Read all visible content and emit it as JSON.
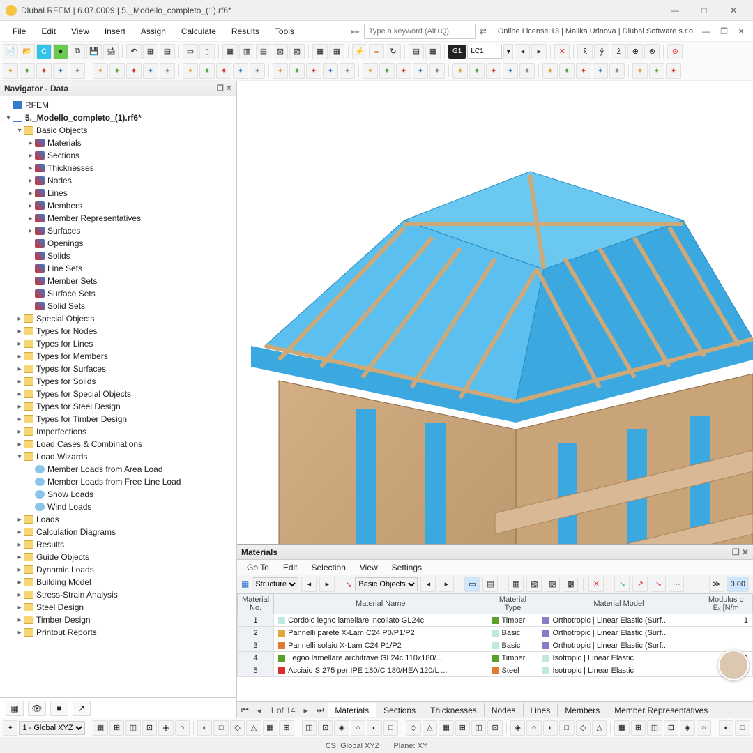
{
  "window": {
    "title": "Dlubal RFEM | 6.07.0009 | 5._Modello_completo_(1).rf6*",
    "license": "Online License 13 | Malika Urinova | Dlubal Software s.r.o."
  },
  "menu": [
    "File",
    "Edit",
    "View",
    "Insert",
    "Assign",
    "Calculate",
    "Results",
    "Tools"
  ],
  "keyword_placeholder": "Type a keyword (Alt+Q)",
  "loadcase": {
    "g1": "G1",
    "lc": "LC1"
  },
  "navigator": {
    "title": "Navigator - Data",
    "root": "RFEM",
    "file": "5._Modello_completo_(1).rf6*",
    "basic_objects_label": "Basic Objects",
    "basic_objects": [
      "Materials",
      "Sections",
      "Thicknesses",
      "Nodes",
      "Lines",
      "Members",
      "Member Representatives",
      "Surfaces",
      "Openings",
      "Solids",
      "Line Sets",
      "Member Sets",
      "Surface Sets",
      "Solid Sets"
    ],
    "folders1": [
      "Special Objects",
      "Types for Nodes",
      "Types for Lines",
      "Types for Members",
      "Types for Surfaces",
      "Types for Solids",
      "Types for Special Objects",
      "Types for Steel Design",
      "Types for Timber Design",
      "Imperfections",
      "Load Cases & Combinations"
    ],
    "load_wizards_label": "Load Wizards",
    "load_wizards": [
      "Member Loads from Area Load",
      "Member Loads from Free Line Load",
      "Snow Loads",
      "Wind Loads"
    ],
    "folders2": [
      "Loads",
      "Calculation Diagrams",
      "Results",
      "Guide Objects",
      "Dynamic Loads",
      "Building Model",
      "Stress-Strain Analysis",
      "Steel Design",
      "Timber Design",
      "Printout Reports"
    ]
  },
  "materials_panel": {
    "title": "Materials",
    "menu": [
      "Go To",
      "Edit",
      "Selection",
      "View",
      "Settings"
    ],
    "structure_label": "Structure",
    "basic_objects_label": "Basic Objects",
    "columns": [
      "Material\nNo.",
      "Material Name",
      "Material\nType",
      "Material Model",
      "Modulus o\nEₓ [N/m"
    ],
    "rows": [
      {
        "no": "1",
        "name": "Cordolo legno lamellare incollato GL24c",
        "name_sw": "#bfe8e0",
        "type": "Timber",
        "type_sw": "#5aa02c",
        "model": "Orthotropic | Linear Elastic (Surf...",
        "model_sw": "#8a7cc7",
        "e": "1"
      },
      {
        "no": "2",
        "name": "Pannelli parete X-Lam C24 P0/P1/P2",
        "name_sw": "#e0a938",
        "type": "Basic",
        "type_sw": "#bfe8e0",
        "model": "Orthotropic | Linear Elastic (Surf...",
        "model_sw": "#8a7cc7",
        "e": ""
      },
      {
        "no": "3",
        "name": "Pannelli solaio X-Lam C24 P1/P2",
        "name_sw": "#e27a34",
        "type": "Basic",
        "type_sw": "#bfe8e0",
        "model": "Orthotropic | Linear Elastic (Surf...",
        "model_sw": "#8a7cc7",
        "e": ""
      },
      {
        "no": "4",
        "name": "Legno lamellare architrave GL24c 110x180/...",
        "name_sw": "#5aa02c",
        "type": "Timber",
        "type_sw": "#5aa02c",
        "model": "Isotropic | Linear Elastic",
        "model_sw": "#bfe8e0",
        "e": "1"
      },
      {
        "no": "5",
        "name": "Acciaio S 275 per IPE 180/C 180/HEA 120/L ...",
        "name_sw": "#d62f2f",
        "type": "Steel",
        "type_sw": "#e27a34",
        "model": "Isotropic | Linear Elastic",
        "model_sw": "#bfe8e0",
        "e": "21"
      }
    ],
    "page": "1 of 14",
    "tabs": [
      "Materials",
      "Sections",
      "Thicknesses",
      "Nodes",
      "Lines",
      "Members",
      "Member Representatives"
    ]
  },
  "status": {
    "cs": "CS: Global XYZ",
    "plane": "Plane: XY",
    "coord_sel": "1 - Global XYZ"
  },
  "viewport": {
    "bg": "#ffffff",
    "wall_color": "#c9a478",
    "wall_dark": "#b8956a",
    "roof_panel": "#3ba8e0",
    "roof_panel_light": "#5bc0f0",
    "beam_color": "#cfa878",
    "floor_color": "#d9b896"
  }
}
